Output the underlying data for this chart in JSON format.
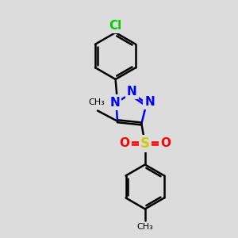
{
  "bg_color": "#dcdcdc",
  "bond_color": "#000000",
  "n_color": "#0000ff",
  "s_color": "#cccc00",
  "o_color": "#ff0000",
  "cl_color": "#00cc00",
  "line_width": 1.8,
  "font_size": 10,
  "figsize": [
    3.0,
    3.0
  ],
  "dpi": 100,
  "xlim": [
    0,
    10
  ],
  "ylim": [
    0,
    10
  ]
}
